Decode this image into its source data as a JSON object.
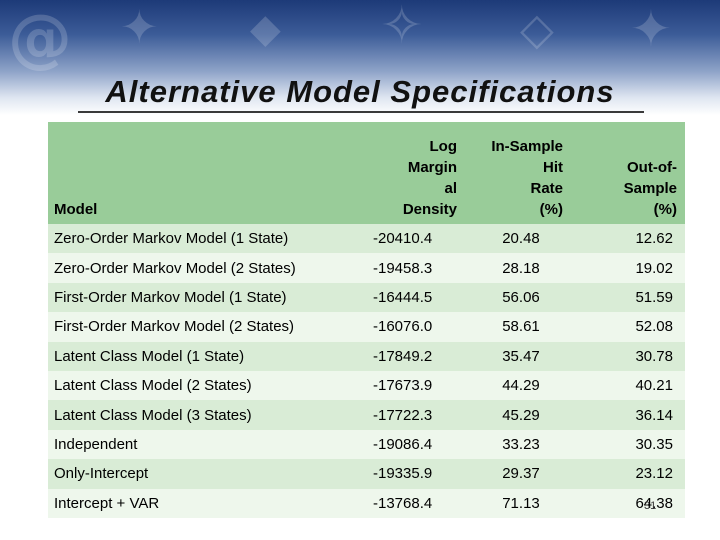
{
  "slide": {
    "title": "Alternative Model Specifications",
    "page_number": "31"
  },
  "table": {
    "headers": [
      "Model",
      "Log\nMargin\nal\nDensity",
      "In-Sample\nHit\nRate\n(%)",
      "Out-of-\nSample\n(%)"
    ],
    "rows": [
      [
        "Zero-Order Markov Model (1 State)",
        "-20410.4",
        "20.48",
        "12.62"
      ],
      [
        "Zero-Order Markov Model (2 States)",
        "-19458.3",
        "28.18",
        "19.02"
      ],
      [
        "First-Order Markov Model (1 State)",
        "-16444.5",
        "56.06",
        "51.59"
      ],
      [
        "First-Order Markov Model (2 States)",
        "-16076.0",
        "58.61",
        "52.08"
      ],
      [
        "Latent Class Model (1 State)",
        "-17849.2",
        "35.47",
        "30.78"
      ],
      [
        "Latent Class Model (2 States)",
        "-17673.9",
        "44.29",
        "40.21"
      ],
      [
        "Latent Class Model (3 States)",
        "-17722.3",
        "45.29",
        "36.14"
      ],
      [
        "Independent",
        "-19086.4",
        "33.23",
        "30.35"
      ],
      [
        "Only-Intercept",
        "-19335.9",
        "29.37",
        "23.12"
      ],
      [
        "Intercept + VAR",
        "-13768.4",
        "71.13",
        "64.38"
      ]
    ]
  },
  "colors": {
    "header_bg": "#99cc99",
    "row_bg_odd": "#d9ecd6",
    "row_bg_even": "#eef7ec",
    "banner_top": "#1d3a78"
  }
}
